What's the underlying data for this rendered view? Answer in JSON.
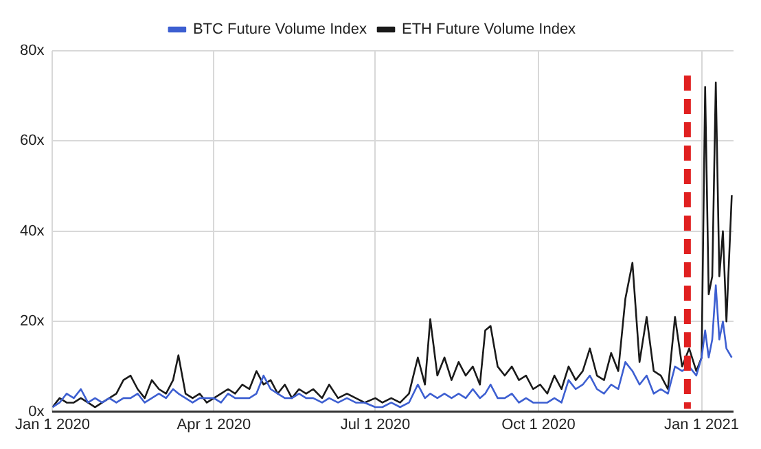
{
  "chart_data": {
    "type": "line",
    "x": [
      "2020-01-01",
      "2020-01-05",
      "2020-01-09",
      "2020-01-13",
      "2020-01-17",
      "2020-01-21",
      "2020-01-25",
      "2020-01-29",
      "2020-02-02",
      "2020-02-06",
      "2020-02-10",
      "2020-02-14",
      "2020-02-18",
      "2020-02-22",
      "2020-02-26",
      "2020-03-01",
      "2020-03-05",
      "2020-03-09",
      "2020-03-12",
      "2020-03-16",
      "2020-03-20",
      "2020-03-24",
      "2020-03-28",
      "2020-04-01",
      "2020-04-05",
      "2020-04-09",
      "2020-04-13",
      "2020-04-17",
      "2020-04-21",
      "2020-04-25",
      "2020-04-29",
      "2020-05-03",
      "2020-05-07",
      "2020-05-11",
      "2020-05-15",
      "2020-05-19",
      "2020-05-23",
      "2020-05-27",
      "2020-06-01",
      "2020-06-05",
      "2020-06-10",
      "2020-06-15",
      "2020-06-20",
      "2020-06-25",
      "2020-07-01",
      "2020-07-05",
      "2020-07-10",
      "2020-07-15",
      "2020-07-20",
      "2020-07-25",
      "2020-07-29",
      "2020-08-01",
      "2020-08-05",
      "2020-08-09",
      "2020-08-13",
      "2020-08-17",
      "2020-08-21",
      "2020-08-25",
      "2020-08-29",
      "2020-09-01",
      "2020-09-04",
      "2020-09-08",
      "2020-09-12",
      "2020-09-16",
      "2020-09-20",
      "2020-09-24",
      "2020-09-28",
      "2020-10-02",
      "2020-10-06",
      "2020-10-10",
      "2020-10-14",
      "2020-10-18",
      "2020-10-22",
      "2020-10-26",
      "2020-10-30",
      "2020-11-03",
      "2020-11-07",
      "2020-11-11",
      "2020-11-15",
      "2020-11-19",
      "2020-11-23",
      "2020-11-27",
      "2020-12-01",
      "2020-12-05",
      "2020-12-09",
      "2020-12-13",
      "2020-12-17",
      "2020-12-21",
      "2020-12-25",
      "2020-12-29",
      "2021-01-01",
      "2021-01-03",
      "2021-01-05",
      "2021-01-07",
      "2021-01-09",
      "2021-01-11",
      "2021-01-13",
      "2021-01-15",
      "2021-01-18"
    ],
    "series": [
      {
        "name": "BTC Future Volume Index",
        "color": "#3d5fd1",
        "values": [
          1,
          2,
          4,
          3,
          5,
          2,
          3,
          2,
          3,
          2,
          3,
          3,
          4,
          2,
          3,
          4,
          3,
          5,
          4,
          3,
          2,
          3,
          3,
          3,
          2,
          4,
          3,
          3,
          3,
          4,
          8,
          5,
          4,
          3,
          3,
          4,
          3,
          3,
          2,
          3,
          2,
          3,
          2,
          2,
          1,
          1,
          2,
          1,
          2,
          6,
          3,
          4,
          3,
          4,
          3,
          4,
          3,
          5,
          3,
          4,
          6,
          3,
          3,
          4,
          2,
          3,
          2,
          2,
          2,
          3,
          2,
          7,
          5,
          6,
          8,
          5,
          4,
          6,
          5,
          11,
          9,
          6,
          8,
          4,
          5,
          4,
          10,
          9,
          10,
          8,
          12,
          18,
          12,
          16,
          28,
          16,
          20,
          14,
          12
        ]
      },
      {
        "name": "ETH Future Volume Index",
        "color": "#1a1a1a",
        "values": [
          1,
          3,
          2,
          2,
          3,
          2,
          1,
          2,
          3,
          4,
          7,
          8,
          5,
          3,
          7,
          5,
          4,
          7,
          12.5,
          4,
          3,
          4,
          2,
          3,
          4,
          5,
          4,
          6,
          5,
          9,
          6,
          7,
          4,
          6,
          3,
          5,
          4,
          5,
          3,
          6,
          3,
          4,
          3,
          2,
          3,
          2,
          3,
          2,
          4,
          12,
          6,
          20.5,
          8,
          12,
          7,
          11,
          8,
          10,
          6,
          18,
          19,
          10,
          8,
          10,
          7,
          8,
          5,
          6,
          4,
          8,
          5,
          10,
          7,
          9,
          14,
          8,
          7,
          13,
          9,
          25,
          33,
          11,
          21,
          9,
          8,
          5,
          21,
          10,
          14,
          9,
          12,
          72,
          26,
          30,
          73,
          30,
          40,
          20,
          48
        ]
      }
    ],
    "xlim": [
      "2020-01-01",
      "2021-01-19"
    ],
    "xticks": [
      {
        "value": "2020-01-01",
        "label": "Jan 1 2020"
      },
      {
        "value": "2020-04-01",
        "label": "Apr 1 2020"
      },
      {
        "value": "2020-07-01",
        "label": "Jul 1 2020"
      },
      {
        "value": "2020-10-01",
        "label": "Oct 1 2020"
      },
      {
        "value": "2021-01-01",
        "label": "Jan 1 2021"
      }
    ],
    "ylim": [
      0,
      80
    ],
    "yticks": [
      {
        "value": 0,
        "label": "0x"
      },
      {
        "value": 20,
        "label": "20x"
      },
      {
        "value": 40,
        "label": "40x"
      },
      {
        "value": 60,
        "label": "60x"
      },
      {
        "value": 80,
        "label": "80x"
      }
    ],
    "ref_lines": [
      {
        "axis": "x",
        "value": "2020-12-24",
        "color": "#e02020",
        "line_style": "dashed"
      }
    ],
    "grid": true,
    "legend": "top",
    "marker": "none",
    "line_style": "solid"
  }
}
